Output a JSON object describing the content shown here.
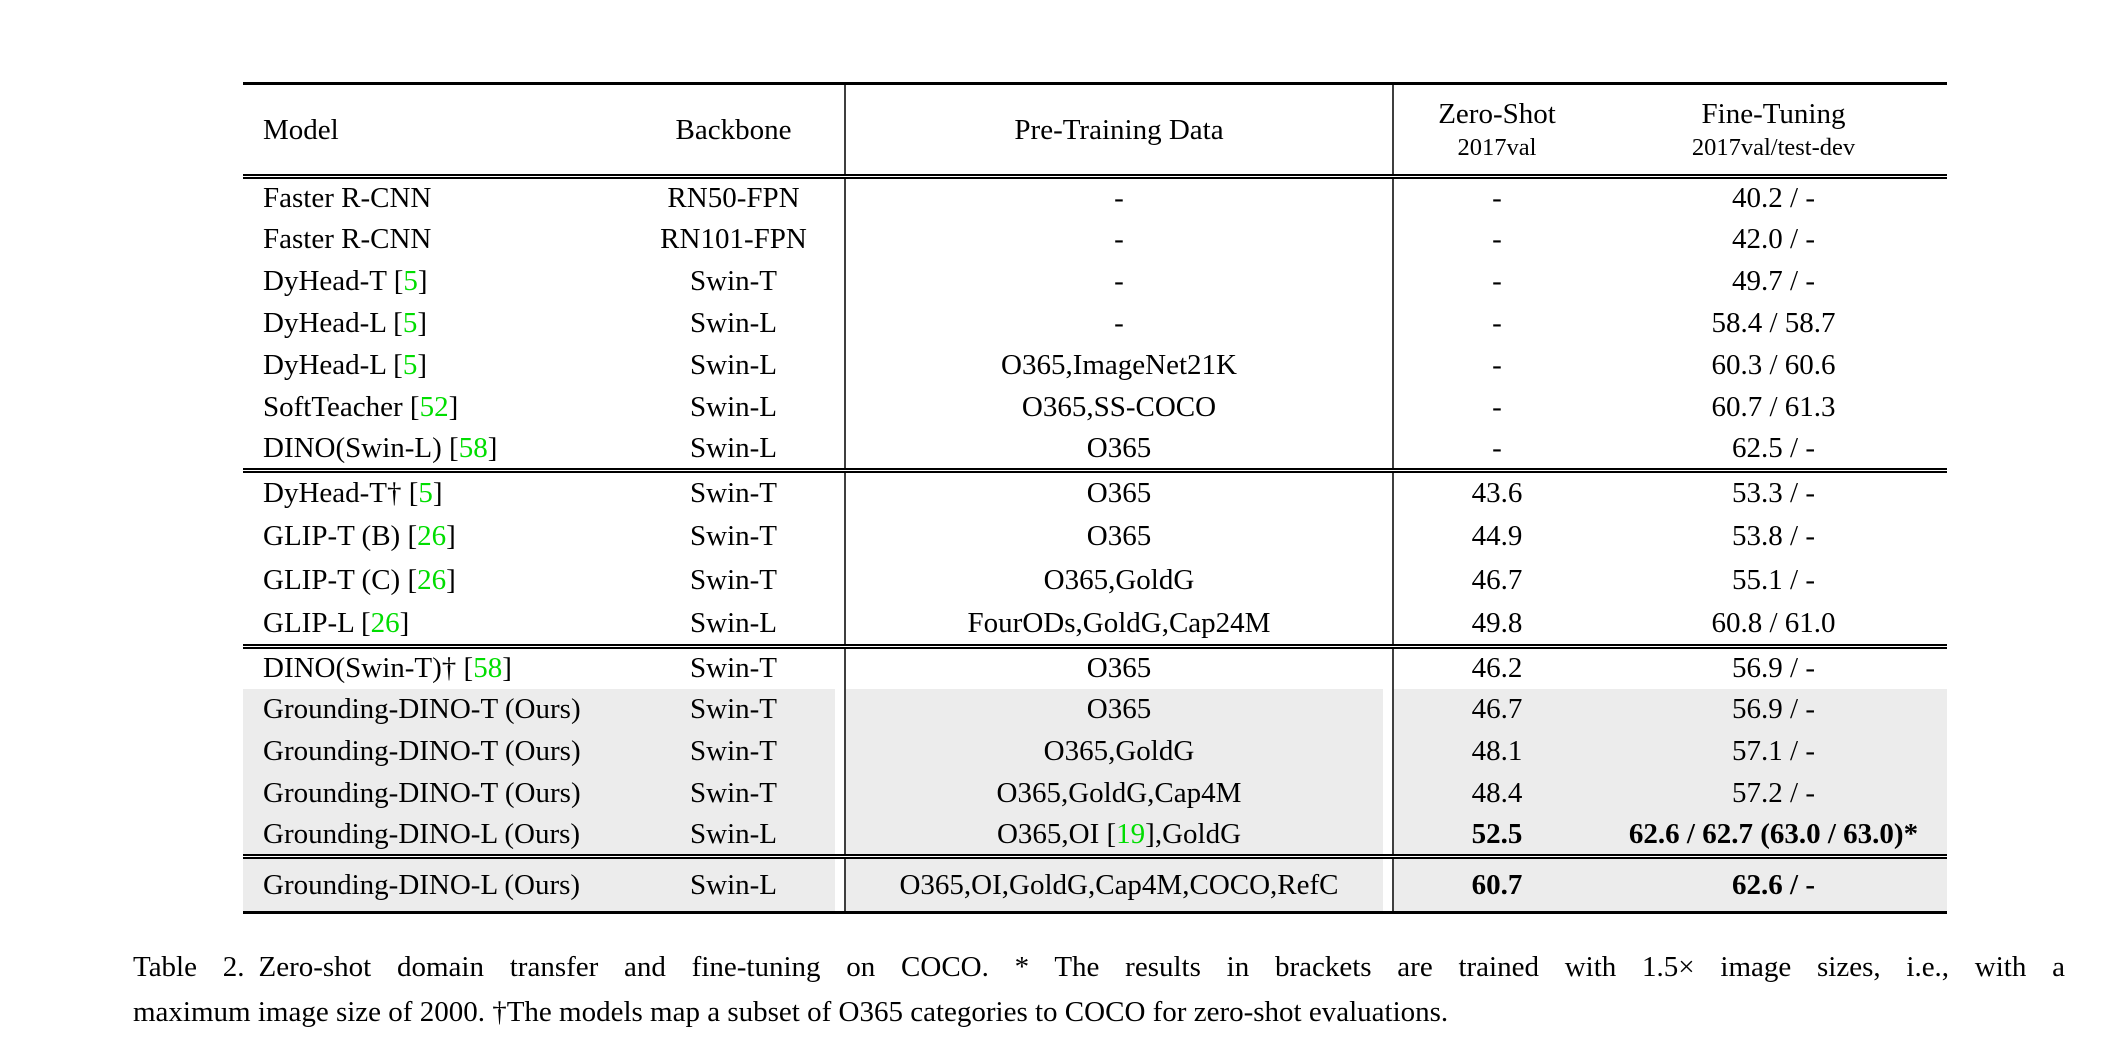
{
  "table": {
    "headers": {
      "model": "Model",
      "backbone": "Backbone",
      "pretraining": "Pre-Training Data",
      "zero_shot_title": "Zero-Shot",
      "zero_shot_sub": "2017val",
      "fine_tuning_title": "Fine-Tuning",
      "fine_tuning_sub": "2017val/test-dev"
    },
    "colors": {
      "row_shade": "#ececec",
      "citation_green": "#00dd00",
      "rule_gray": "#3f3f3f"
    },
    "blocks": [
      {
        "rows": [
          {
            "model": "Faster R-CNN",
            "backbone": "RN50-FPN",
            "pretraining": "-",
            "zero_shot": "-",
            "fine_tuning": "40.2 / -",
            "shaded": false,
            "bold": false
          },
          {
            "model": "Faster R-CNN",
            "backbone": "RN101-FPN",
            "pretraining": "-",
            "zero_shot": "-",
            "fine_tuning": "42.0 / -",
            "shaded": false,
            "bold": false
          },
          {
            "model": "DyHead-T [5]",
            "backbone": "Swin-T",
            "pretraining": "-",
            "zero_shot": "-",
            "fine_tuning": "49.7 / -",
            "shaded": false,
            "bold": false
          },
          {
            "model": "DyHead-L [5]",
            "backbone": "Swin-L",
            "pretraining": "-",
            "zero_shot": "-",
            "fine_tuning": "58.4 / 58.7",
            "shaded": false,
            "bold": false
          },
          {
            "model": "DyHead-L [5]",
            "backbone": "Swin-L",
            "pretraining": "O365,ImageNet21K",
            "zero_shot": "-",
            "fine_tuning": "60.3 / 60.6",
            "shaded": false,
            "bold": false
          },
          {
            "model": "SoftTeacher [52]",
            "backbone": "Swin-L",
            "pretraining": "O365,SS-COCO",
            "zero_shot": "-",
            "fine_tuning": "60.7 / 61.3",
            "shaded": false,
            "bold": false
          },
          {
            "model": "DINO(Swin-L) [58]",
            "backbone": "Swin-L",
            "pretraining": "O365",
            "zero_shot": "-",
            "fine_tuning": "62.5 / -",
            "shaded": false,
            "bold": false
          }
        ]
      },
      {
        "rows": [
          {
            "model": "DyHead-T† [5]",
            "backbone": "Swin-T",
            "pretraining": "O365",
            "zero_shot": "43.6",
            "fine_tuning": "53.3 / -",
            "shaded": false,
            "bold": false
          },
          {
            "model": "GLIP-T (B) [26]",
            "backbone": "Swin-T",
            "pretraining": "O365",
            "zero_shot": "44.9",
            "fine_tuning": "53.8 / -",
            "shaded": false,
            "bold": false
          },
          {
            "model": "GLIP-T (C) [26]",
            "backbone": "Swin-T",
            "pretraining": "O365,GoldG",
            "zero_shot": "46.7",
            "fine_tuning": "55.1 / -",
            "shaded": false,
            "bold": false
          },
          {
            "model": "GLIP-L [26]",
            "backbone": "Swin-L",
            "pretraining": "FourODs,GoldG,Cap24M",
            "zero_shot": "49.8",
            "fine_tuning": "60.8 / 61.0",
            "shaded": false,
            "bold": false
          }
        ]
      },
      {
        "rows": [
          {
            "model": "DINO(Swin-T)† [58]",
            "backbone": "Swin-T",
            "pretraining": "O365",
            "zero_shot": "46.2",
            "fine_tuning": "56.9 / -",
            "shaded": false,
            "bold": false
          },
          {
            "model": "Grounding-DINO-T (Ours)",
            "backbone": "Swin-T",
            "pretraining": "O365",
            "zero_shot": "46.7",
            "fine_tuning": "56.9 / -",
            "shaded": true,
            "bold": false
          },
          {
            "model": "Grounding-DINO-T (Ours)",
            "backbone": "Swin-T",
            "pretraining": "O365,GoldG",
            "zero_shot": "48.1",
            "fine_tuning": "57.1 / -",
            "shaded": true,
            "bold": false
          },
          {
            "model": "Grounding-DINO-T (Ours)",
            "backbone": "Swin-T",
            "pretraining": "O365,GoldG,Cap4M",
            "zero_shot": "48.4",
            "fine_tuning": "57.2 / -",
            "shaded": true,
            "bold": false
          },
          {
            "model": "Grounding-DINO-L (Ours)",
            "backbone": "Swin-L",
            "pretraining": "O365,OI [19],GoldG",
            "zero_shot": "52.5",
            "fine_tuning": "62.6 / 62.7 (63.0 / 63.0)*",
            "shaded": true,
            "bold": true
          }
        ]
      },
      {
        "final": true,
        "rows": [
          {
            "model": "Grounding-DINO-L (Ours)",
            "backbone": "Swin-L",
            "pretraining": "O365,OI,GoldG,Cap4M,COCO,RefC",
            "zero_shot": "60.7",
            "fine_tuning": "62.6 / -",
            "shaded": true,
            "bold": true
          }
        ]
      }
    ],
    "caption": {
      "label": "Table 2.",
      "line1": "Zero-shot domain transfer and fine-tuning on COCO. * The results in brackets are trained with 1.5× image sizes, i.e., with a",
      "line2": "maximum image size of 2000. †The models map a subset of O365 categories to COCO for zero-shot evaluations."
    }
  }
}
